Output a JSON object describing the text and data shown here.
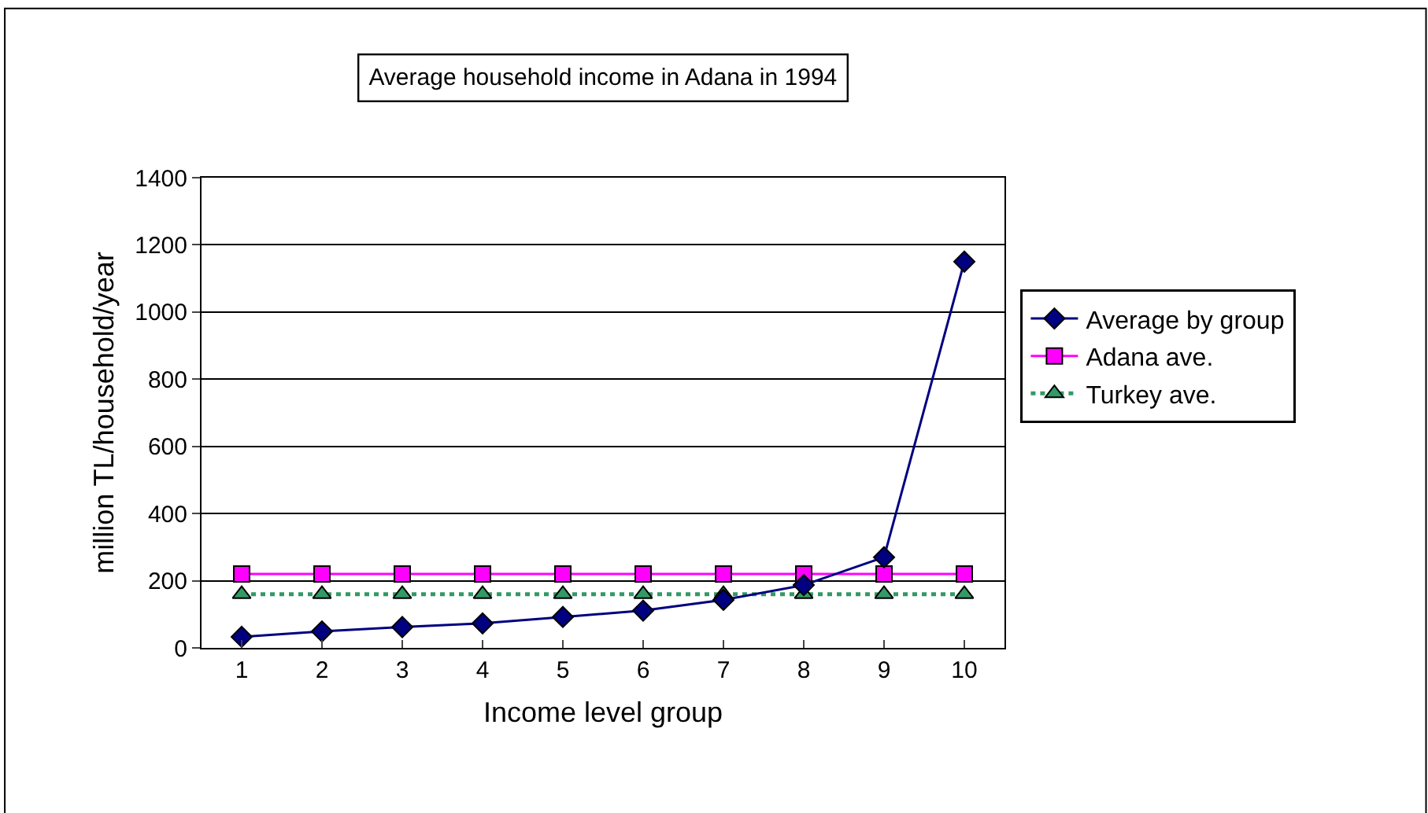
{
  "chart_data": {
    "type": "line",
    "title": "Average household income in Adana in 1994",
    "xlabel": "Income level group",
    "ylabel": "million TL/household/year",
    "categories": [
      "1",
      "2",
      "3",
      "4",
      "5",
      "6",
      "7",
      "8",
      "9",
      "10"
    ],
    "series": [
      {
        "name": "Average by group",
        "color": "#000080",
        "marker": "diamond",
        "line_style": "solid",
        "values": [
          33,
          49,
          62,
          73,
          92,
          111,
          143,
          187,
          270,
          1150
        ]
      },
      {
        "name": "Adana ave.",
        "color": "#ff00ff",
        "marker": "square",
        "line_style": "solid",
        "values": [
          220,
          220,
          220,
          220,
          220,
          220,
          220,
          220,
          220,
          220
        ]
      },
      {
        "name": "Turkey ave.",
        "color": "#339966",
        "marker": "triangle",
        "line_style": "dotted",
        "values": [
          160,
          160,
          160,
          160,
          160,
          160,
          160,
          160,
          160,
          160
        ]
      }
    ],
    "ylim": [
      0,
      1400
    ],
    "yticks": [
      0,
      200,
      400,
      600,
      800,
      1000,
      1200,
      1400
    ],
    "grid": "y",
    "legend": "right"
  }
}
